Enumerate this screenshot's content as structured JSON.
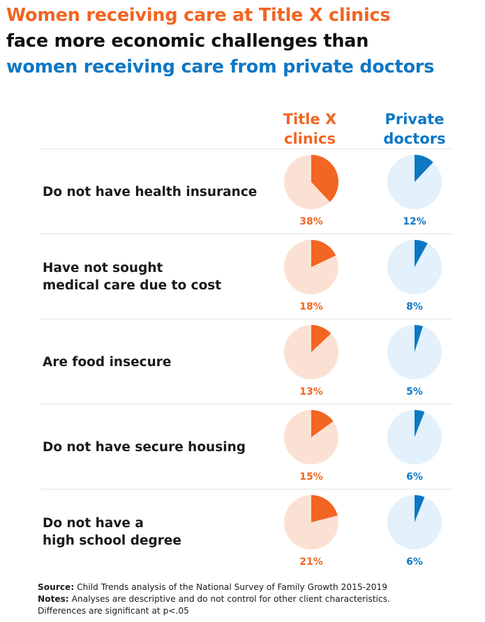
{
  "title": {
    "line1": "Women receiving care at Title X clinics",
    "line2": "face more economic challenges than",
    "line3": "women receiving care from private doctors"
  },
  "columns": {
    "col1": "Title X\nclinics",
    "col2": "Private\ndoctors"
  },
  "colors": {
    "title_x": "#f26522",
    "title_x_light": "#fbe1d3",
    "private": "#0e77c4",
    "private_light": "#e2f1fb"
  },
  "chart_data": {
    "type": "pie",
    "categories": [
      "Do not have health insurance",
      "Have not sought\nmedical care due to cost",
      "Are food insecure",
      "Do not have secure housing",
      "Do not have a\nhigh school degree"
    ],
    "series": [
      {
        "name": "Title X clinics",
        "values": [
          38,
          18,
          13,
          15,
          21
        ],
        "labels": [
          "38%",
          "18%",
          "13%",
          "15%",
          "21%"
        ]
      },
      {
        "name": "Private doctors",
        "values": [
          12,
          8,
          5,
          6,
          6
        ],
        "labels": [
          "12%",
          "8%",
          "5%",
          "6%",
          "6%"
        ]
      }
    ]
  },
  "footer": {
    "source_label": "Source:",
    "source_text": " Child Trends analysis of the National Survey of Family Growth 2015-2019",
    "notes_label": "Notes:",
    "notes_text": " Analyses are descriptive and do not control for other client characteristics.",
    "notes_text2": "Differences are significant at p<.05"
  }
}
